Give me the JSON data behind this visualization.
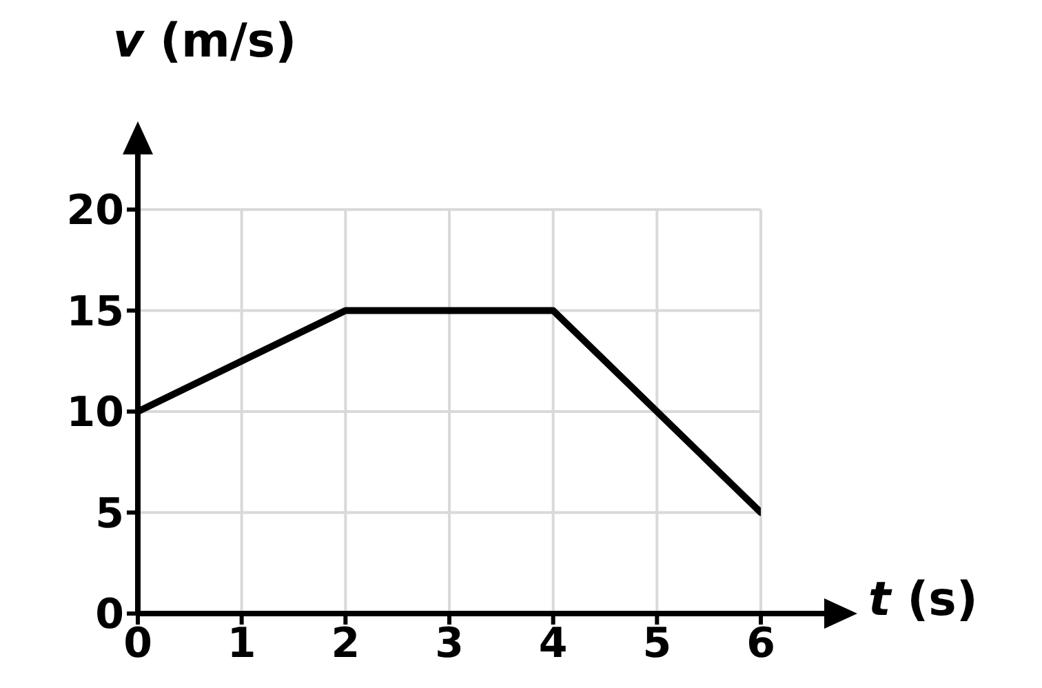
{
  "chart_data": {
    "type": "line",
    "xlabel": "t (s)",
    "ylabel": "v (m/s)",
    "x": [
      0,
      2,
      4,
      6
    ],
    "series": [
      {
        "color": "#000000",
        "values": [
          10,
          15,
          15,
          5
        ]
      }
    ],
    "xlim": [
      0,
      6
    ],
    "ylim": [
      0,
      20
    ],
    "xticks": [
      0,
      1,
      2,
      3,
      4,
      5,
      6
    ],
    "yticks": [
      0,
      5,
      10,
      15,
      20
    ],
    "grid": true,
    "marker": "none",
    "line_style": "solid"
  }
}
